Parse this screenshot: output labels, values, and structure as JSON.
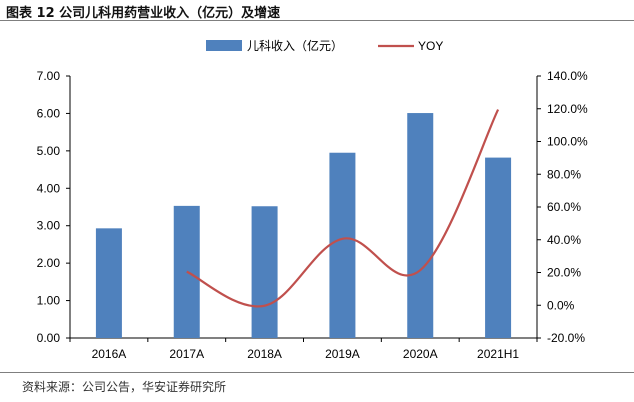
{
  "figure": {
    "title": "图表 12 公司儿科用药营业收入（亿元）及增速",
    "source": "资料来源：公司公告，华安证券研究所"
  },
  "chart_data": {
    "type": "bar",
    "categories": [
      "2016A",
      "2017A",
      "2018A",
      "2019A",
      "2020A",
      "2021H1"
    ],
    "series": [
      {
        "name": "儿科收入（亿元）",
        "type": "bar",
        "axis": "left",
        "color": "#4f81bd",
        "values": [
          2.93,
          3.53,
          3.52,
          4.95,
          6.01,
          4.82
        ]
      },
      {
        "name": "YOY",
        "type": "line",
        "axis": "right",
        "color": "#c0504d",
        "values": [
          null,
          20.5,
          -0.3,
          40.6,
          21.4,
          119.5
        ]
      }
    ],
    "y_left": {
      "min": 0,
      "max": 7,
      "step": 1,
      "tick_labels": [
        "0.00",
        "1.00",
        "2.00",
        "3.00",
        "4.00",
        "5.00",
        "6.00",
        "7.00"
      ]
    },
    "y_right": {
      "min": -20,
      "max": 140,
      "step": 20,
      "tick_labels": [
        "-20.0%",
        "0.0%",
        "20.0%",
        "40.0%",
        "60.0%",
        "80.0%",
        "100.0%",
        "120.0%",
        "140.0%"
      ]
    },
    "legend": {
      "position": "top",
      "labels": [
        "儿科收入（亿元）",
        "YOY"
      ]
    },
    "grid": false
  }
}
